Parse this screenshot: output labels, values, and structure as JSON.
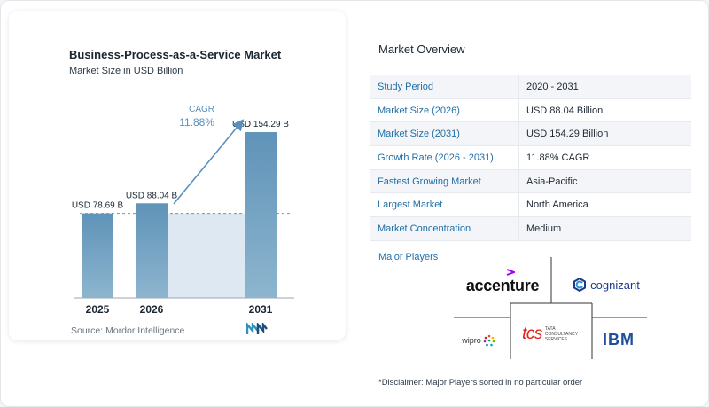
{
  "chart_data": {
    "type": "bar",
    "title": "Business-Process-as-a-Service Market",
    "subtitle": "Market Size in USD Billion",
    "categories": [
      "2025",
      "2026",
      "2031"
    ],
    "values": [
      78.69,
      88.04,
      154.29
    ],
    "value_labels": [
      "USD 78.69 B",
      "USD 88.04 B",
      "USD 154.29 B"
    ],
    "ylim": [
      0,
      170
    ],
    "grid": false,
    "cagr_label": "CAGR",
    "cagr_value": "11.88%",
    "colors": {
      "bar": "#5f93b8",
      "bar_light": "#8db5cf",
      "shade": "#dde8f3",
      "arrow": "#5b8fbd",
      "cagr": "#5b8fbd"
    }
  },
  "source": "Source:  Mordor Intelligence",
  "overview": {
    "title": "Market Overview",
    "rows": [
      {
        "label": "Study Period",
        "value": "2020 - 2031"
      },
      {
        "label": "Market Size (2026)",
        "value": "USD 88.04 Billion"
      },
      {
        "label": "Market Size (2031)",
        "value": "USD 154.29 Billion"
      },
      {
        "label": "Growth Rate (2026 - 2031)",
        "value": "11.88% CAGR"
      },
      {
        "label": "Fastest Growing Market",
        "value": "Asia-Pacific"
      },
      {
        "label": "Largest Market",
        "value": "North America"
      },
      {
        "label": "Market Concentration",
        "value": "Medium"
      }
    ]
  },
  "major_players": {
    "title": "Major Players",
    "logos": [
      "accenture",
      "cognizant",
      "wipro",
      "tcs",
      "TATA CONSULTANCY SERVICES",
      "IBM"
    ]
  },
  "disclaimer": "*Disclaimer: Major Players sorted in no particular order"
}
